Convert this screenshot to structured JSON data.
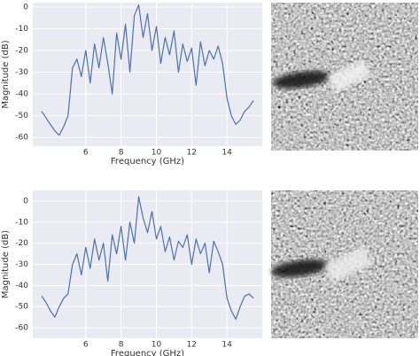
{
  "chart_data": [
    {
      "type": "line",
      "xlabel": "Frequency (GHz)",
      "ylabel": "Magnitude (dB)",
      "x": [
        3.5,
        3.75,
        4.0,
        4.25,
        4.5,
        4.75,
        5.0,
        5.25,
        5.5,
        5.75,
        6.0,
        6.25,
        6.5,
        6.75,
        7.0,
        7.25,
        7.5,
        7.75,
        8.0,
        8.25,
        8.5,
        8.75,
        9.0,
        9.25,
        9.5,
        9.75,
        10.0,
        10.25,
        10.5,
        10.75,
        11.0,
        11.25,
        11.5,
        11.75,
        12.0,
        12.25,
        12.5,
        12.75,
        13.0,
        13.25,
        13.5,
        13.75,
        14.0,
        14.25,
        14.5,
        14.75,
        15.0,
        15.25,
        15.5
      ],
      "series": [
        {
          "color": "#4c72b0",
          "values": [
            -48,
            -51,
            -54,
            -57,
            -59,
            -55,
            -50,
            -28,
            -24,
            -32,
            -20,
            -35,
            -17,
            -28,
            -14,
            -26,
            -40,
            -12,
            -24,
            -8,
            -30,
            -4,
            1,
            -14,
            -3,
            -20,
            -9,
            -26,
            -14,
            -22,
            -11,
            -30,
            -17,
            -25,
            -19,
            -36,
            -16,
            -27,
            -20,
            -24,
            -18,
            -26,
            -42,
            -50,
            -54,
            -52,
            -48,
            -46,
            -43
          ]
        }
      ],
      "xlim": [
        3,
        16
      ],
      "ylim": [
        -64,
        2
      ],
      "xticks": [
        6,
        8,
        10,
        12,
        14
      ],
      "yticks": [
        0,
        -10,
        -20,
        -30,
        -40,
        -50,
        -60
      ],
      "grid": true
    },
    {
      "type": "line",
      "xlabel": "Frequency (GHz)",
      "ylabel": "Magnitude (dB)",
      "x": [
        3.5,
        3.75,
        4.0,
        4.25,
        4.5,
        4.75,
        5.0,
        5.25,
        5.5,
        5.75,
        6.0,
        6.25,
        6.5,
        6.75,
        7.0,
        7.25,
        7.5,
        7.75,
        8.0,
        8.25,
        8.5,
        8.75,
        9.0,
        9.25,
        9.5,
        9.75,
        10.0,
        10.25,
        10.5,
        10.75,
        11.0,
        11.25,
        11.5,
        11.75,
        12.0,
        12.25,
        12.5,
        12.75,
        13.0,
        13.25,
        13.5,
        13.75,
        14.0,
        14.25,
        14.5,
        14.75,
        15.0,
        15.25,
        15.5
      ],
      "series": [
        {
          "color": "#4c72b0",
          "values": [
            -45,
            -48,
            -52,
            -55,
            -50,
            -46,
            -44,
            -30,
            -25,
            -35,
            -22,
            -32,
            -18,
            -28,
            -20,
            -38,
            -16,
            -25,
            -12,
            -28,
            -10,
            -20,
            2,
            -8,
            -15,
            -5,
            -18,
            -12,
            -24,
            -17,
            -28,
            -19,
            -22,
            -16,
            -30,
            -18,
            -25,
            -20,
            -34,
            -19,
            -24,
            -30,
            -46,
            -52,
            -56,
            -50,
            -45,
            -44,
            -46
          ]
        }
      ],
      "xlim": [
        3,
        16
      ],
      "ylim": [
        -65,
        5
      ],
      "xticks": [
        6,
        8,
        10,
        12,
        14
      ],
      "yticks": [
        0,
        -10,
        -20,
        -30,
        -40,
        -50,
        -60
      ],
      "grid": true
    }
  ]
}
